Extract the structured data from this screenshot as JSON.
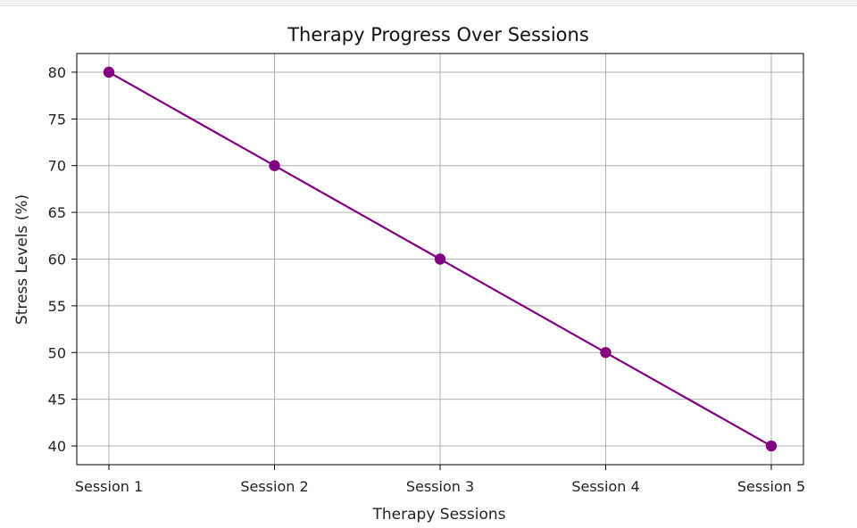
{
  "chart_data": {
    "type": "line",
    "title": "Therapy Progress Over Sessions",
    "xlabel": "Therapy Sessions",
    "ylabel": "Stress Levels (%)",
    "categories": [
      "Session 1",
      "Session 2",
      "Session 3",
      "Session 4",
      "Session 5"
    ],
    "series": [
      {
        "values": [
          80,
          70,
          60,
          50,
          40
        ],
        "color": "#800080",
        "marker": "circle"
      }
    ],
    "ylim": [
      38,
      82
    ],
    "yticks": [
      40,
      45,
      50,
      55,
      60,
      65,
      70,
      75,
      80
    ],
    "grid": true,
    "legend": "none",
    "grid_color": "#b0b0b0"
  }
}
